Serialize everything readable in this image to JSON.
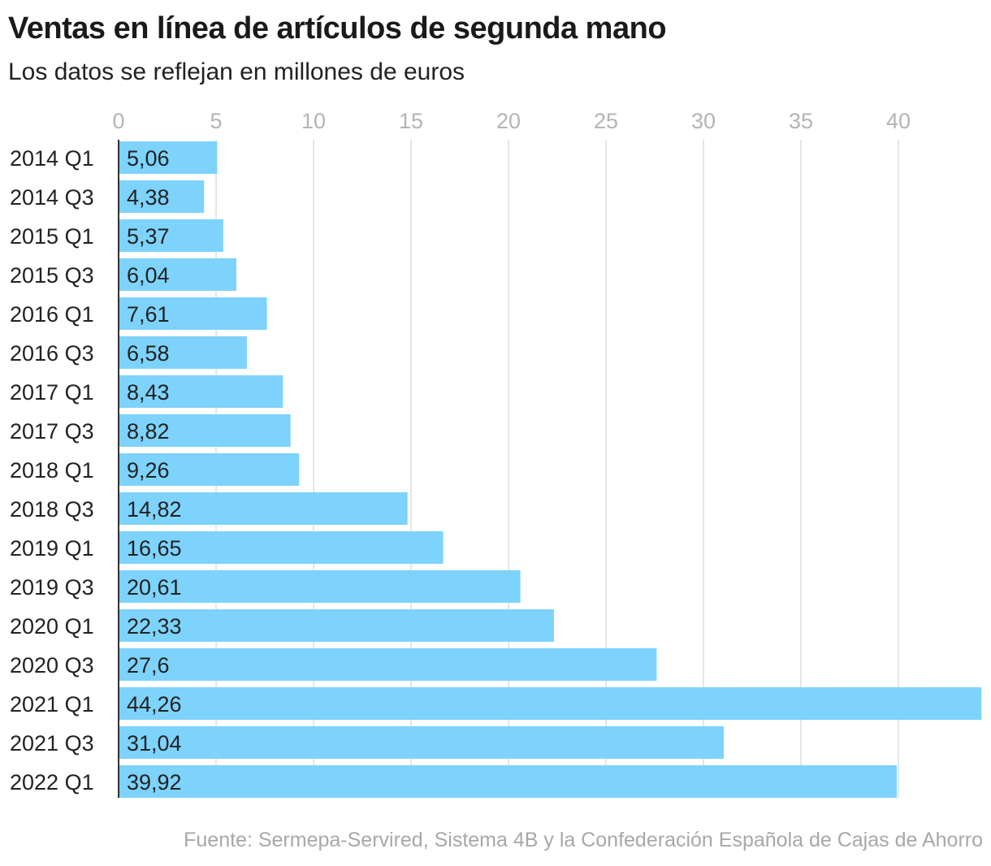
{
  "header": {
    "title": "Ventas en línea de artículos de segunda mano",
    "subtitle": "Los datos se reflejan en millones de euros"
  },
  "footer": {
    "source": "Fuente: Sermepa-Servired, Sistema 4B y la Confederación Española de Cajas de Ahorro"
  },
  "colors": {
    "bar": "#7dd3fc",
    "grid": "#dddddd",
    "tick_text": "#b4b4b4"
  },
  "chart_data": {
    "type": "bar",
    "orientation": "horizontal",
    "title": "Ventas en línea de artículos de segunda mano",
    "subtitle": "Los datos se reflejan en millones de euros",
    "categories": [
      "2014 Q1",
      "2014 Q3",
      "2015 Q1",
      "2015 Q3",
      "2016 Q1",
      "2016 Q3",
      "2017 Q1",
      "2017 Q3",
      "2018 Q1",
      "2018 Q3",
      "2019 Q1",
      "2019 Q3",
      "2020 Q1",
      "2020 Q3",
      "2021 Q1",
      "2021 Q3",
      "2022 Q1"
    ],
    "values": [
      5.06,
      4.38,
      5.37,
      6.04,
      7.61,
      6.58,
      8.43,
      8.82,
      9.26,
      14.82,
      16.65,
      20.61,
      22.33,
      27.6,
      44.26,
      31.04,
      39.92
    ],
    "value_labels": [
      "5,06",
      "4,38",
      "5,37",
      "6,04",
      "7,61",
      "6,58",
      "8,43",
      "8,82",
      "9,26",
      "14,82",
      "16,65",
      "20,61",
      "22,33",
      "27,6",
      "44,26",
      "31,04",
      "39,92"
    ],
    "xticks": [
      0,
      5,
      10,
      15,
      20,
      25,
      30,
      35,
      40
    ],
    "xlim": [
      0,
      44.26
    ],
    "xlabel": "",
    "ylabel": "",
    "grid": true,
    "tick_position": "top"
  }
}
